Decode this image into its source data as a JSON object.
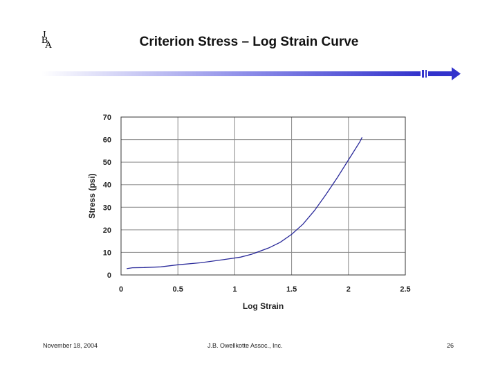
{
  "logo": {
    "letters": [
      "J",
      "B",
      "A"
    ]
  },
  "slide": {
    "title": "Criterion Stress – Log Strain Curve"
  },
  "footer": {
    "date": "November 18, 2004",
    "organization": "J.B. Owellkotte Assoc., Inc.",
    "page": "26"
  },
  "colors": {
    "accent_bar": "#3333cc",
    "curve": "#2a2a9a",
    "grid": "#888888"
  },
  "chart_data": {
    "type": "line",
    "title": "",
    "xlabel": "Log Strain",
    "ylabel": "Stress (psi)",
    "xlim": [
      0,
      2.5
    ],
    "ylim": [
      0,
      70
    ],
    "xticks": [
      0,
      0.5,
      1,
      1.5,
      2,
      2.5
    ],
    "xtick_labels": [
      "0",
      "0.5",
      "1",
      "1.5",
      "2",
      "2.5"
    ],
    "yticks": [
      0,
      10,
      20,
      30,
      40,
      50,
      60,
      70
    ],
    "ytick_labels": [
      "0",
      "10",
      "20",
      "30",
      "40",
      "50",
      "60",
      "70"
    ],
    "grid": true,
    "legend": "none",
    "series": [
      {
        "x": [
          0.05,
          0.1,
          0.2,
          0.35,
          0.5,
          0.7,
          0.9,
          1.05,
          1.15,
          1.3,
          1.4,
          1.5,
          1.6,
          1.7,
          1.8,
          1.9,
          2.0,
          2.1,
          2.12
        ],
        "y": [
          2.8,
          3.2,
          3.3,
          3.6,
          4.5,
          5.4,
          6.8,
          7.9,
          9.2,
          12.0,
          14.5,
          18.0,
          22.5,
          28.5,
          35.5,
          43.0,
          51.0,
          59.0,
          61.0
        ]
      }
    ]
  }
}
